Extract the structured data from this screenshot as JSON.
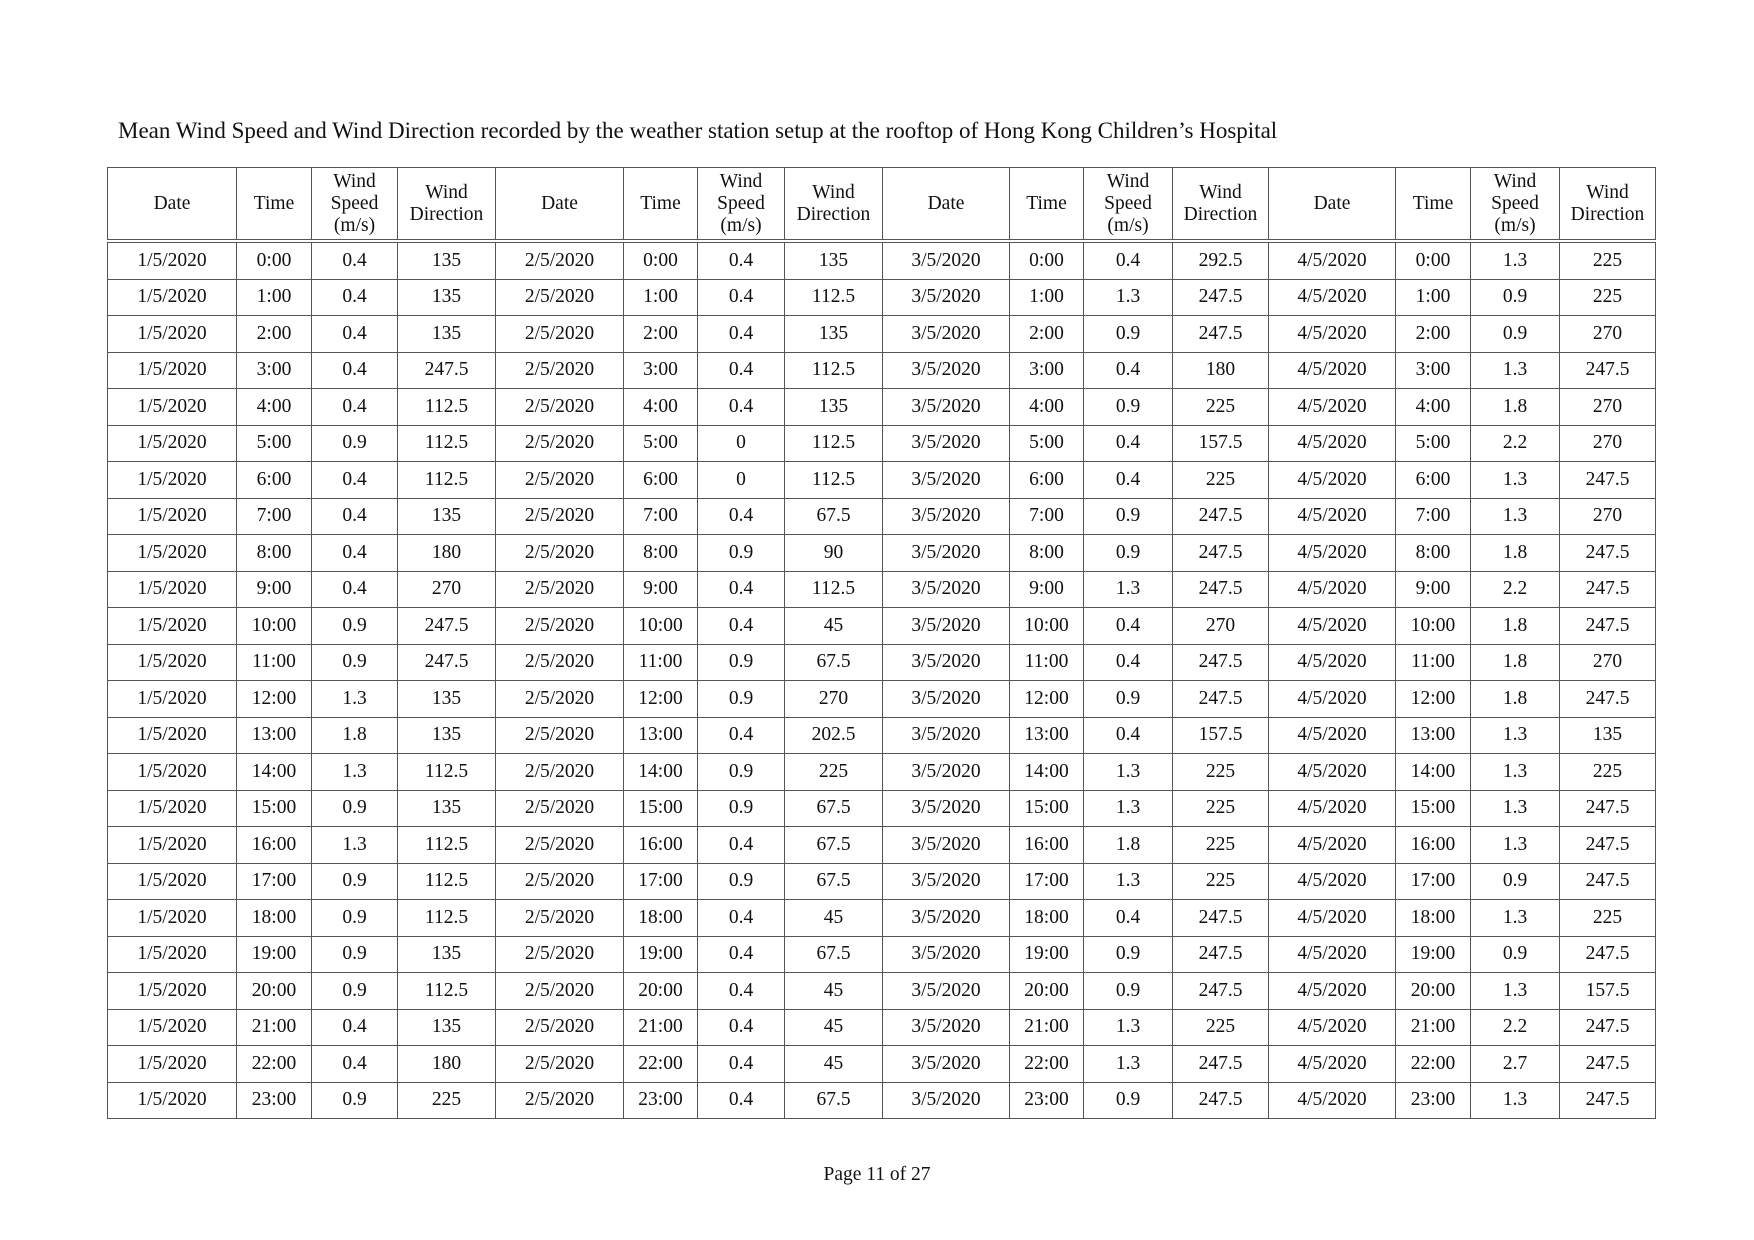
{
  "title": "Mean Wind Speed and Wind Direction recorded by the weather station setup at the rooftop of Hong Kong Children’s Hospital",
  "headers": [
    "Date",
    "Time",
    "Wind Speed (m/s)",
    "Wind Direction"
  ],
  "header_lines": {
    "date": "Date",
    "time": "Time",
    "speed": [
      "Wind",
      "Speed",
      "(m/s)"
    ],
    "direction": [
      "Wind",
      "Direction"
    ]
  },
  "times": [
    "0:00",
    "1:00",
    "2:00",
    "3:00",
    "4:00",
    "5:00",
    "6:00",
    "7:00",
    "8:00",
    "9:00",
    "10:00",
    "11:00",
    "12:00",
    "13:00",
    "14:00",
    "15:00",
    "16:00",
    "17:00",
    "18:00",
    "19:00",
    "20:00",
    "21:00",
    "22:00",
    "23:00"
  ],
  "days": [
    {
      "date": "1/5/2020",
      "speed": [
        "0.4",
        "0.4",
        "0.4",
        "0.4",
        "0.4",
        "0.9",
        "0.4",
        "0.4",
        "0.4",
        "0.4",
        "0.9",
        "0.9",
        "1.3",
        "1.8",
        "1.3",
        "0.9",
        "1.3",
        "0.9",
        "0.9",
        "0.9",
        "0.9",
        "0.4",
        "0.4",
        "0.9"
      ],
      "direction": [
        "135",
        "135",
        "135",
        "247.5",
        "112.5",
        "112.5",
        "112.5",
        "135",
        "180",
        "270",
        "247.5",
        "247.5",
        "135",
        "135",
        "112.5",
        "135",
        "112.5",
        "112.5",
        "112.5",
        "135",
        "112.5",
        "135",
        "180",
        "225"
      ]
    },
    {
      "date": "2/5/2020",
      "speed": [
        "0.4",
        "0.4",
        "0.4",
        "0.4",
        "0.4",
        "0",
        "0",
        "0.4",
        "0.9",
        "0.4",
        "0.4",
        "0.9",
        "0.9",
        "0.4",
        "0.9",
        "0.9",
        "0.4",
        "0.9",
        "0.4",
        "0.4",
        "0.4",
        "0.4",
        "0.4",
        "0.4"
      ],
      "direction": [
        "135",
        "112.5",
        "135",
        "112.5",
        "135",
        "112.5",
        "112.5",
        "67.5",
        "90",
        "112.5",
        "45",
        "67.5",
        "270",
        "202.5",
        "225",
        "67.5",
        "67.5",
        "67.5",
        "45",
        "67.5",
        "45",
        "45",
        "45",
        "67.5"
      ]
    },
    {
      "date": "3/5/2020",
      "speed": [
        "0.4",
        "1.3",
        "0.9",
        "0.4",
        "0.9",
        "0.4",
        "0.4",
        "0.9",
        "0.9",
        "1.3",
        "0.4",
        "0.4",
        "0.9",
        "0.4",
        "1.3",
        "1.3",
        "1.8",
        "1.3",
        "0.4",
        "0.9",
        "0.9",
        "1.3",
        "1.3",
        "0.9"
      ],
      "direction": [
        "292.5",
        "247.5",
        "247.5",
        "180",
        "225",
        "157.5",
        "225",
        "247.5",
        "247.5",
        "247.5",
        "270",
        "247.5",
        "247.5",
        "157.5",
        "225",
        "225",
        "225",
        "225",
        "247.5",
        "247.5",
        "247.5",
        "225",
        "247.5",
        "247.5"
      ]
    },
    {
      "date": "4/5/2020",
      "speed": [
        "1.3",
        "0.9",
        "0.9",
        "1.3",
        "1.8",
        "2.2",
        "1.3",
        "1.3",
        "1.8",
        "2.2",
        "1.8",
        "1.8",
        "1.8",
        "1.3",
        "1.3",
        "1.3",
        "1.3",
        "0.9",
        "1.3",
        "0.9",
        "1.3",
        "2.2",
        "2.7",
        "1.3"
      ],
      "direction": [
        "225",
        "225",
        "270",
        "247.5",
        "270",
        "270",
        "247.5",
        "270",
        "247.5",
        "247.5",
        "247.5",
        "270",
        "247.5",
        "135",
        "225",
        "247.5",
        "247.5",
        "247.5",
        "225",
        "247.5",
        "157.5",
        "247.5",
        "247.5",
        "247.5"
      ]
    }
  ],
  "page_number": "Page 11 of 27"
}
